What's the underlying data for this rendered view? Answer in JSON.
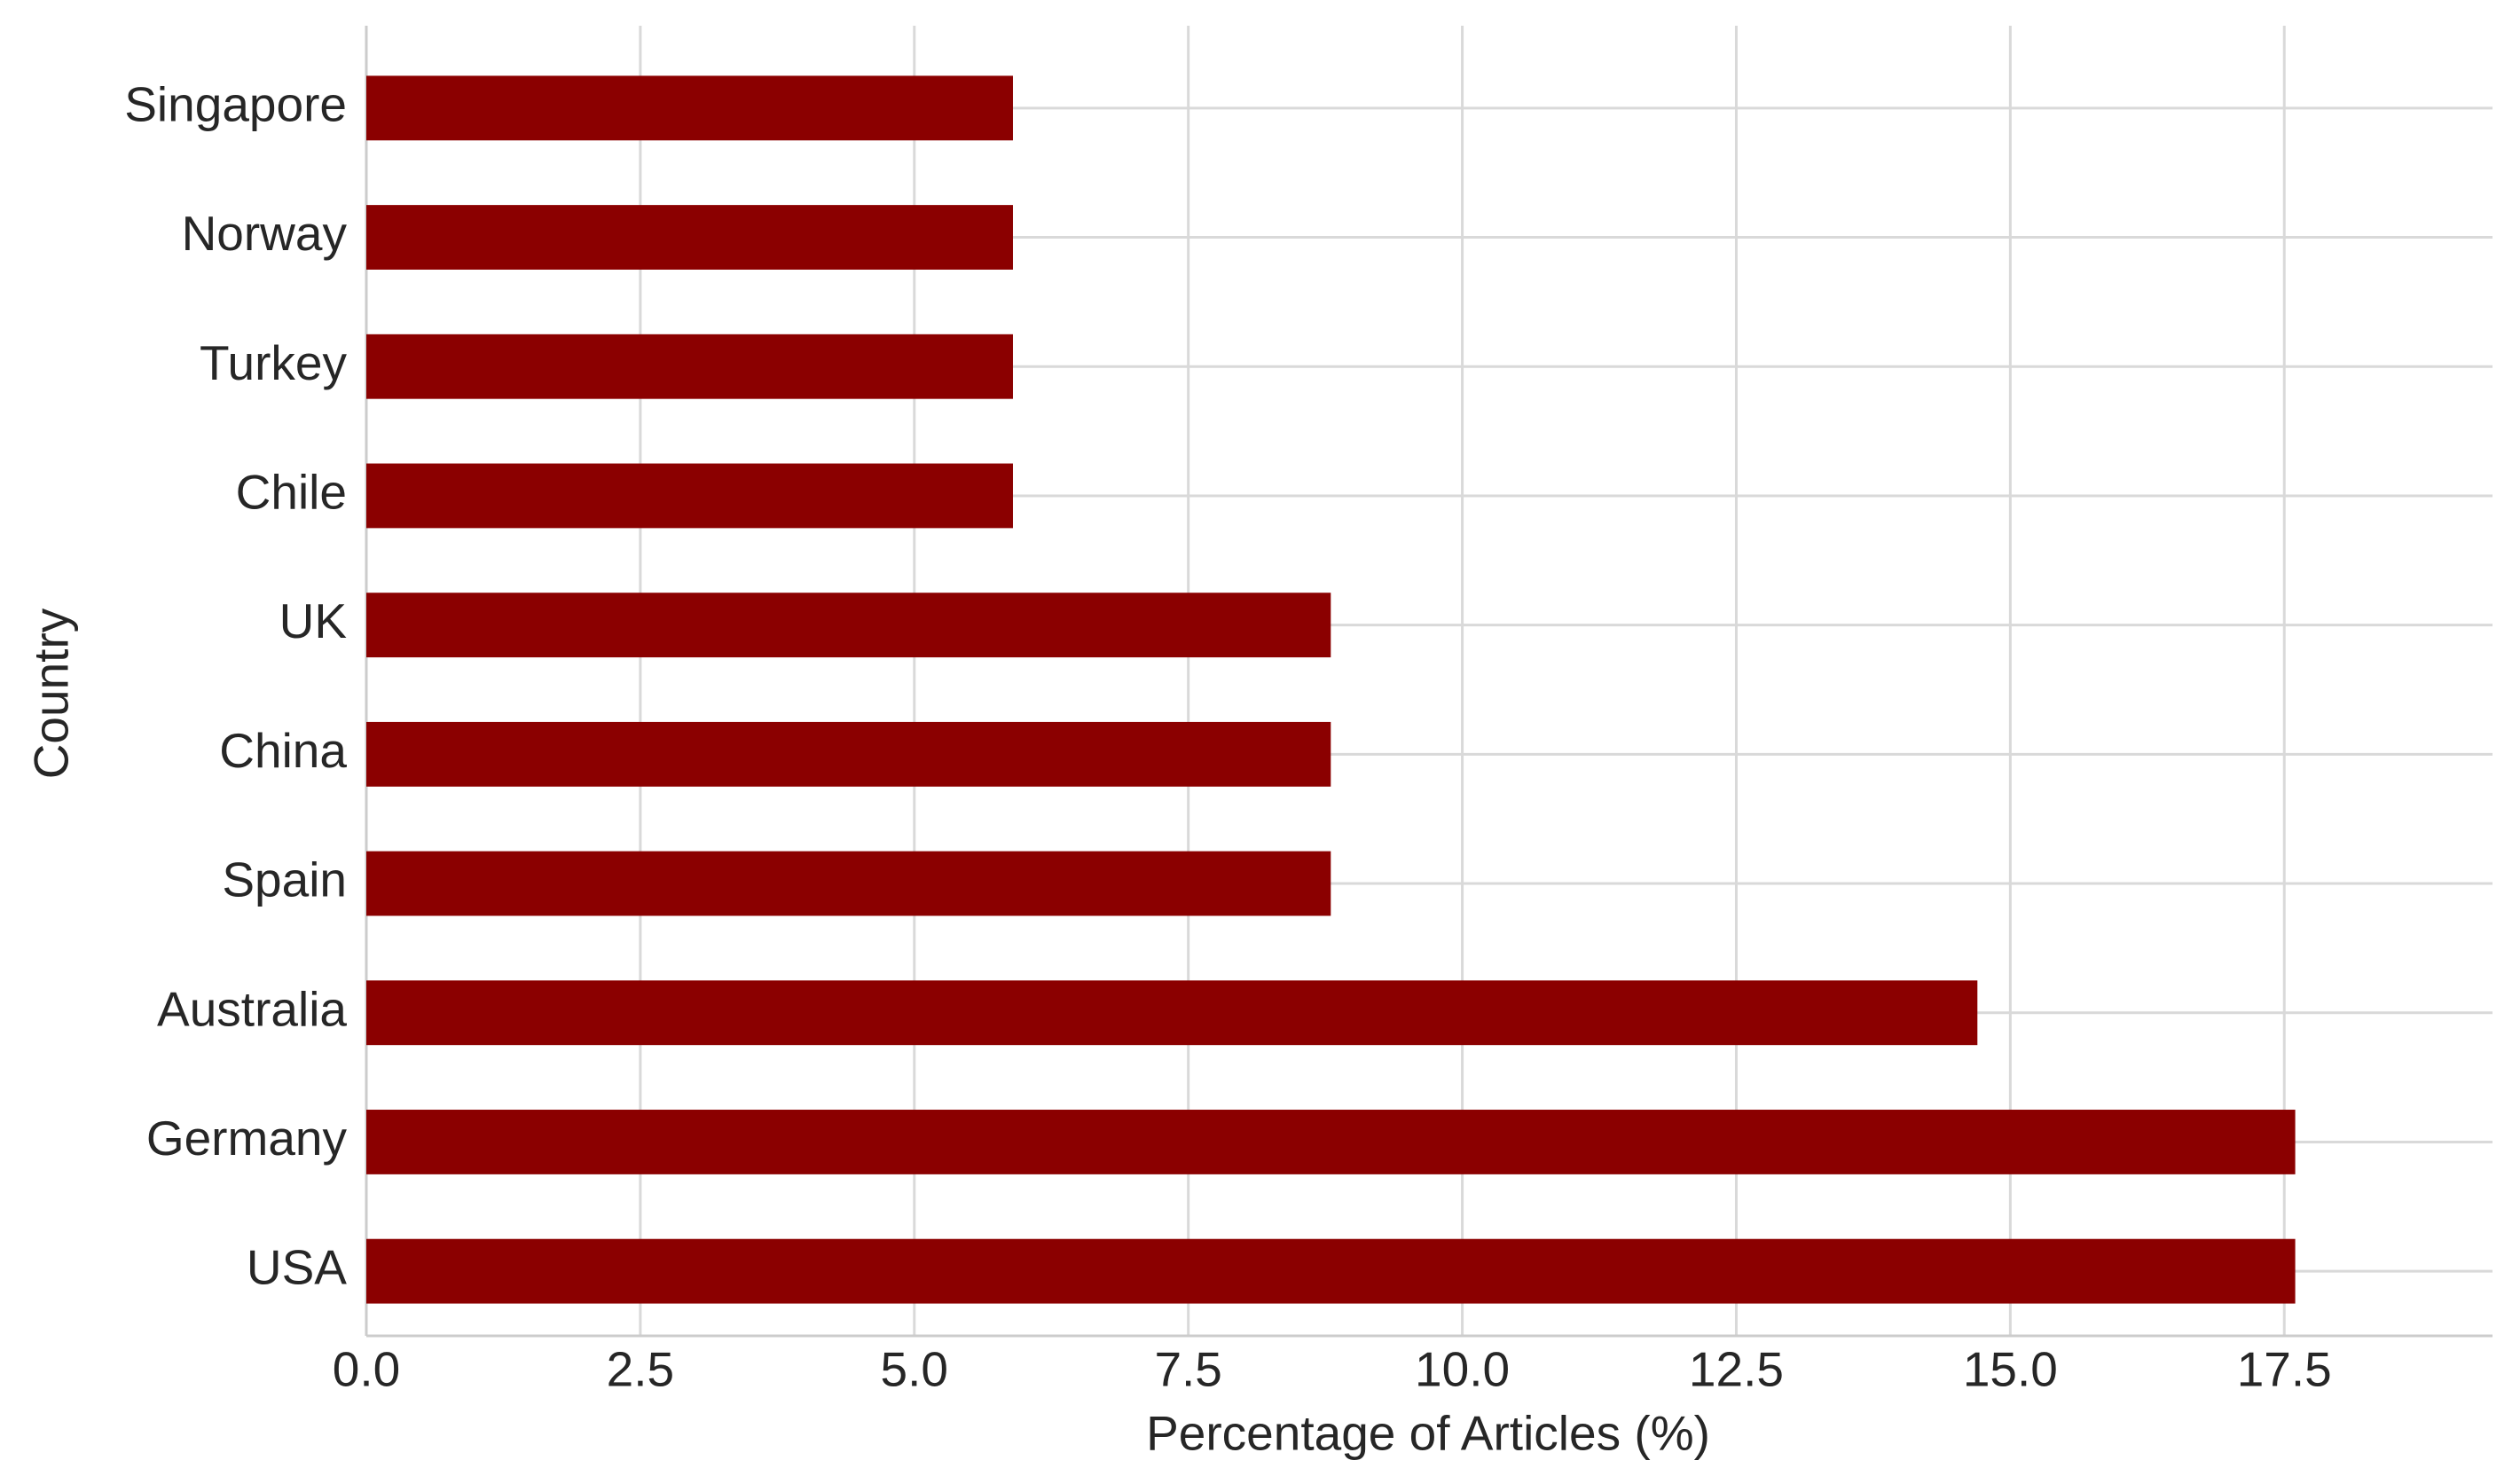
{
  "chart_data": {
    "type": "barh",
    "x_label": "Percentage of Articles (%)",
    "y_label": "Country",
    "categories": [
      "USA",
      "Germany",
      "Australia",
      "Spain",
      "China",
      "UK",
      "Chile",
      "Turkey",
      "Norway",
      "Singapore"
    ],
    "values": [
      17.6,
      17.6,
      14.7,
      8.8,
      8.8,
      8.8,
      5.9,
      5.9,
      5.9,
      5.9
    ],
    "color": "#8b0000",
    "xlim": [
      0,
      19.4
    ],
    "xticks": [
      {
        "value": 0,
        "label": "0.0"
      },
      2.5,
      {
        "value": 5,
        "label": "5.0"
      },
      7.5,
      {
        "value": 10,
        "label": "10.0"
      },
      12.5,
      {
        "value": 15,
        "label": "15.0"
      },
      17.5
    ],
    "grid": true
  }
}
